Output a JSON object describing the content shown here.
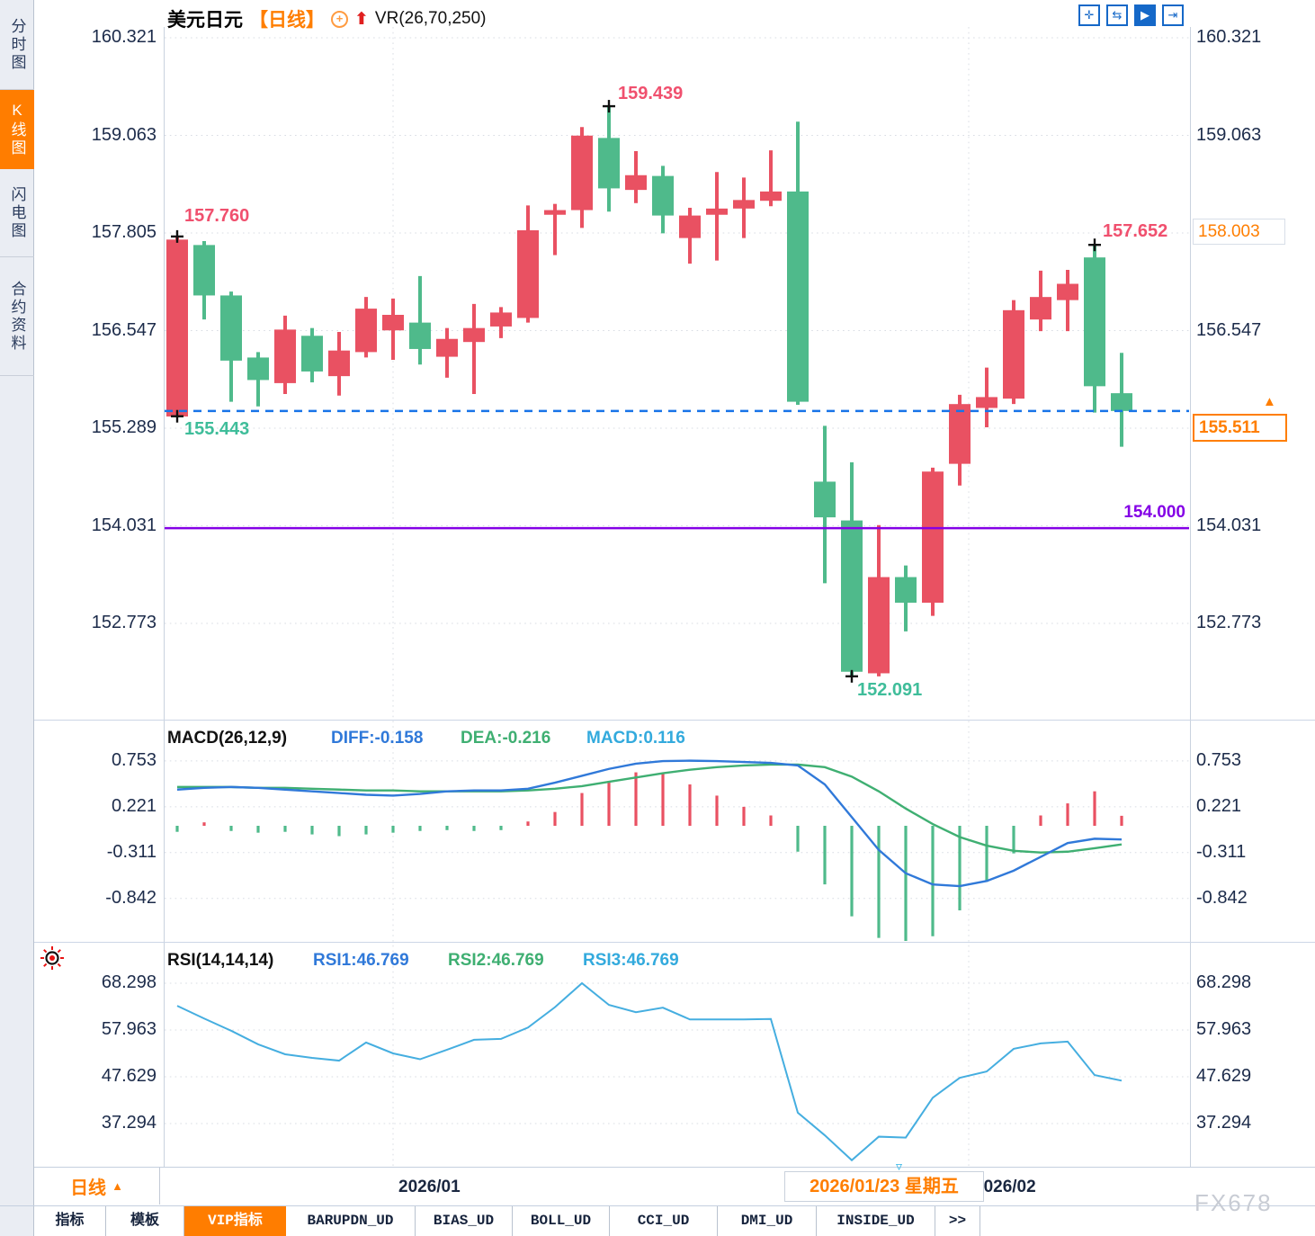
{
  "window": {
    "watermark": "FX678"
  },
  "sidebar": {
    "items": [
      {
        "label": "分时图",
        "active": false
      },
      {
        "label": "K线图",
        "active": true
      },
      {
        "label": "闪电图",
        "active": false
      },
      {
        "label": "合约资料",
        "active": false
      }
    ]
  },
  "title": {
    "symbol": "美元日元",
    "period_tag": "【日线】",
    "indicator": "VR(26,70,250)"
  },
  "toolbar": {
    "icons": [
      {
        "name": "crosshair-icon",
        "glyph": "✛",
        "active": false
      },
      {
        "name": "axis-range-icon",
        "glyph": "⇆",
        "active": false
      },
      {
        "name": "chart-scale-icon",
        "glyph": "▶",
        "active": true
      },
      {
        "name": "pane-shift-icon",
        "glyph": "⇥",
        "active": false
      }
    ]
  },
  "main_chart": {
    "annotations": {
      "high1": "157.760",
      "low1": "155.443",
      "peak": "159.439",
      "trough": "152.091",
      "recent_high": "157.652"
    },
    "levels": {
      "alert": {
        "value": "158.003"
      },
      "last": {
        "value": "155.511"
      },
      "support": {
        "value": "154.000"
      }
    }
  },
  "macd_panel": {
    "title": "MACD(26,12,9)",
    "diff_label": "DIFF:-0.158",
    "dea_label": "DEA:-0.216",
    "macd_label": "MACD:0.116"
  },
  "rsi_panel": {
    "title": "RSI(14,14,14)",
    "rsi1_label": "RSI1:46.769",
    "rsi2_label": "RSI2:46.769",
    "rsi3_label": "RSI3:46.769"
  },
  "time_axis": {
    "period_selector": "日线",
    "months": [
      "2026/01",
      "2026/02"
    ],
    "crosshair_date": "2026/01/23 星期五"
  },
  "tabs": {
    "items": [
      {
        "label": "指标",
        "active": false
      },
      {
        "label": "模板",
        "active": false
      },
      {
        "label": "VIP指标",
        "active": true
      },
      {
        "label": "BARUPDN_UD",
        "active": false
      },
      {
        "label": "BIAS_UD",
        "active": false
      },
      {
        "label": "BOLL_UD",
        "active": false
      },
      {
        "label": "CCI_UD",
        "active": false
      },
      {
        "label": "DMI_UD",
        "active": false
      },
      {
        "label": "INSIDE_UD",
        "active": false
      },
      {
        "label": ">>",
        "active": false
      }
    ]
  },
  "colors": {
    "up": "#e95162",
    "down": "#4fba8b",
    "annotation_up": "#f0506e",
    "annotation_down": "#3fbd9a",
    "accent_orange": "#ff7e00",
    "last_price_line": "#1874e8",
    "support_line": "#8400e6",
    "diff_line": "#3079d9",
    "dea_line": "#3faf72",
    "macd_text": "#33aadd",
    "rsi_line": "#45aee0",
    "axis_text": "#1c2b4a",
    "toolbar_blue": "#1568c8"
  },
  "chart_data": [
    {
      "type": "candlestick",
      "title": "美元日元 日线",
      "convention": "red=up, green=down",
      "ylim": [
        151.6,
        160.321
      ],
      "y_ticks": [
        160.321,
        159.063,
        157.805,
        156.547,
        155.289,
        154.031,
        152.773
      ],
      "x_month_labels": [
        "2026/01",
        "2026/02"
      ],
      "crosshair_date": "2026/01/23 星期五",
      "levels": {
        "last_price": 155.511,
        "support": 154.0,
        "alert": 158.003
      },
      "candles": [
        [
          155.44,
          157.76,
          155.44,
          157.72
        ],
        [
          157.65,
          157.7,
          156.69,
          157.0
        ],
        [
          157.0,
          157.05,
          155.63,
          156.16
        ],
        [
          156.2,
          156.27,
          155.57,
          155.91
        ],
        [
          155.87,
          156.74,
          155.73,
          156.56
        ],
        [
          156.48,
          156.58,
          155.88,
          156.02
        ],
        [
          155.96,
          156.53,
          155.71,
          156.29
        ],
        [
          156.27,
          156.98,
          156.2,
          156.83
        ],
        [
          156.55,
          156.96,
          156.17,
          156.75
        ],
        [
          156.65,
          157.25,
          156.11,
          156.31
        ],
        [
          156.21,
          156.58,
          155.94,
          156.44
        ],
        [
          156.4,
          156.89,
          155.73,
          156.58
        ],
        [
          156.6,
          156.85,
          156.45,
          156.78
        ],
        [
          156.71,
          158.16,
          156.65,
          157.84
        ],
        [
          158.04,
          158.18,
          157.52,
          158.1
        ],
        [
          158.1,
          159.17,
          157.87,
          159.06
        ],
        [
          159.03,
          159.439,
          158.08,
          158.38
        ],
        [
          158.36,
          158.86,
          158.19,
          158.55
        ],
        [
          158.54,
          158.67,
          157.8,
          158.03
        ],
        [
          157.74,
          158.13,
          157.41,
          158.03
        ],
        [
          158.04,
          158.59,
          157.45,
          158.12
        ],
        [
          158.12,
          158.52,
          157.74,
          158.23
        ],
        [
          158.22,
          158.87,
          158.15,
          158.34
        ],
        [
          158.34,
          159.24,
          155.59,
          155.63
        ],
        [
          154.6,
          155.32,
          153.29,
          154.14
        ],
        [
          154.1,
          154.85,
          152.091,
          152.15
        ],
        [
          152.13,
          154.04,
          152.09,
          153.37
        ],
        [
          153.37,
          153.52,
          152.67,
          153.04
        ],
        [
          153.04,
          154.78,
          152.87,
          154.73
        ],
        [
          154.83,
          155.72,
          154.55,
          155.6
        ],
        [
          155.55,
          156.07,
          155.3,
          155.69
        ],
        [
          155.67,
          156.94,
          155.6,
          156.81
        ],
        [
          156.69,
          157.32,
          156.54,
          156.98
        ],
        [
          156.94,
          157.33,
          156.54,
          157.15
        ],
        [
          157.49,
          157.652,
          155.49,
          155.83
        ],
        [
          155.74,
          156.26,
          155.05,
          155.511
        ]
      ],
      "markers": [
        {
          "candle": 0,
          "price": 157.76
        },
        {
          "candle": 0,
          "price": 155.443
        },
        {
          "candle": 16,
          "price": 159.439
        },
        {
          "candle": 25,
          "price": 152.091
        },
        {
          "candle": 34,
          "price": 157.652
        }
      ]
    },
    {
      "type": "bar",
      "title": "MACD(26,12,9)",
      "y_ticks": [
        0.753,
        0.221,
        -0.311,
        -0.842
      ],
      "series": [
        {
          "name": "DIFF",
          "values": [
            0.42,
            0.44,
            0.45,
            0.44,
            0.42,
            0.4,
            0.38,
            0.36,
            0.35,
            0.37,
            0.4,
            0.41,
            0.41,
            0.43,
            0.5,
            0.58,
            0.66,
            0.72,
            0.75,
            0.755,
            0.75,
            0.74,
            0.73,
            0.7,
            0.48,
            0.1,
            -0.28,
            -0.55,
            -0.68,
            -0.7,
            -0.64,
            -0.52,
            -0.36,
            -0.2,
            -0.15,
            -0.158
          ]
        },
        {
          "name": "DEA",
          "values": [
            0.45,
            0.45,
            0.45,
            0.44,
            0.44,
            0.43,
            0.42,
            0.41,
            0.41,
            0.4,
            0.4,
            0.4,
            0.4,
            0.41,
            0.43,
            0.46,
            0.51,
            0.56,
            0.61,
            0.65,
            0.68,
            0.7,
            0.71,
            0.71,
            0.68,
            0.57,
            0.4,
            0.2,
            0.02,
            -0.13,
            -0.23,
            -0.29,
            -0.31,
            -0.3,
            -0.26,
            -0.216
          ]
        },
        {
          "name": "MACD_hist",
          "values": [
            -0.07,
            0.04,
            -0.06,
            -0.08,
            -0.07,
            -0.1,
            -0.12,
            -0.1,
            -0.08,
            -0.06,
            -0.05,
            -0.06,
            -0.05,
            0.05,
            0.16,
            0.38,
            0.52,
            0.62,
            0.6,
            0.48,
            0.35,
            0.22,
            0.12,
            -0.3,
            -0.68,
            -1.05,
            -1.3,
            -1.42,
            -1.28,
            -0.98,
            -0.65,
            -0.32,
            0.12,
            0.26,
            0.4,
            0.116
          ]
        }
      ]
    },
    {
      "type": "line",
      "title": "RSI(14,14,14)",
      "y_ticks": [
        68.298,
        57.963,
        47.629,
        37.294
      ],
      "series": [
        {
          "name": "RSI",
          "values": [
            63.3,
            60.5,
            57.8,
            54.8,
            52.6,
            51.8,
            51.2,
            55.2,
            52.8,
            51.5,
            53.6,
            55.8,
            56.0,
            58.5,
            63.0,
            68.3,
            63.5,
            61.9,
            62.9,
            60.3,
            60.3,
            60.3,
            60.4,
            39.7,
            34.7,
            29.2,
            34.4,
            34.2,
            43.0,
            47.4,
            48.8,
            53.8,
            55.0,
            55.4,
            48.0,
            46.769
          ]
        }
      ]
    }
  ]
}
